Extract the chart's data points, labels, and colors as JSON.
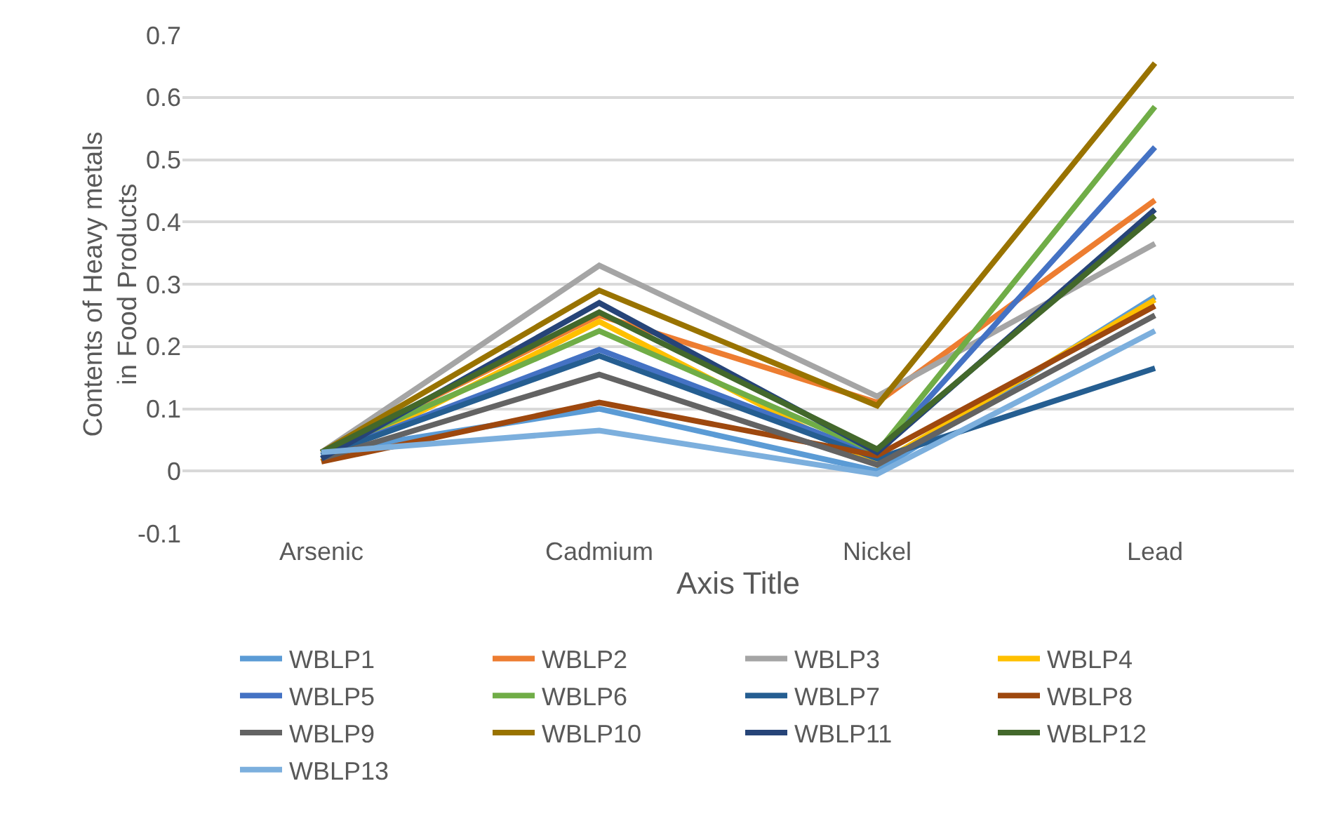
{
  "chart_data": {
    "type": "line",
    "xlabel": "Axis Title",
    "ylabel": "Contents of Heavy metals in Food Products",
    "categories": [
      "Arsenic",
      "Cadmium",
      "Nickel",
      "Lead"
    ],
    "ylim": [
      -0.1,
      0.7
    ],
    "yticks": [
      -0.1,
      0,
      0.1,
      0.2,
      0.3,
      0.4,
      0.5,
      0.6,
      0.7
    ],
    "grid": "y",
    "legend": "bottom",
    "marker": "none",
    "line_style": "solid",
    "series": [
      {
        "name": "WBLP1",
        "color": "#5b9bd5",
        "values": [
          0.03,
          0.1,
          0.0,
          0.28
        ]
      },
      {
        "name": "WBLP2",
        "color": "#ed7d31",
        "values": [
          0.03,
          0.25,
          0.11,
          0.435
        ]
      },
      {
        "name": "WBLP3",
        "color": "#a5a5a5",
        "values": [
          0.03,
          0.33,
          0.12,
          0.365
        ]
      },
      {
        "name": "WBLP4",
        "color": "#ffc000",
        "values": [
          0.015,
          0.24,
          0.01,
          0.275
        ]
      },
      {
        "name": "WBLP5",
        "color": "#4472c4",
        "values": [
          0.025,
          0.195,
          0.025,
          0.52
        ]
      },
      {
        "name": "WBLP6",
        "color": "#70ad47",
        "values": [
          0.03,
          0.225,
          0.03,
          0.585
        ]
      },
      {
        "name": "WBLP7",
        "color": "#255e91",
        "values": [
          0.025,
          0.185,
          0.02,
          0.165
        ]
      },
      {
        "name": "WBLP8",
        "color": "#9e480e",
        "values": [
          0.015,
          0.11,
          0.025,
          0.265
        ]
      },
      {
        "name": "WBLP9",
        "color": "#636363",
        "values": [
          0.02,
          0.155,
          0.01,
          0.25
        ]
      },
      {
        "name": "WBLP10",
        "color": "#997300",
        "values": [
          0.03,
          0.29,
          0.105,
          0.655
        ]
      },
      {
        "name": "WBLP11",
        "color": "#264478",
        "values": [
          0.02,
          0.27,
          0.03,
          0.42
        ]
      },
      {
        "name": "WBLP12",
        "color": "#43682b",
        "values": [
          0.03,
          0.255,
          0.035,
          0.41
        ]
      },
      {
        "name": "WBLP13",
        "color": "#7cafdd",
        "values": [
          0.03,
          0.065,
          -0.005,
          0.225
        ]
      }
    ]
  }
}
